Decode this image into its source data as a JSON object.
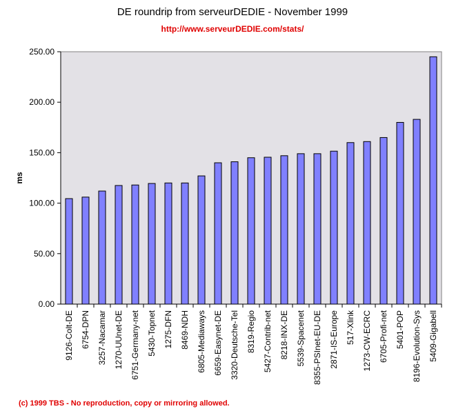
{
  "chart_data": {
    "type": "bar",
    "title": "DE roundrip from serveurDEDIE - November 1999",
    "subtitle": "http://www.serveurDEDIE.com/stats/",
    "footer": "(c) 1999 TBS - No reproduction, copy or mirroring allowed.",
    "xlabel": "",
    "ylabel": "ms",
    "ylim": [
      0,
      250
    ],
    "yticks": [
      "0.00",
      "50.00",
      "100.00",
      "150.00",
      "200.00",
      "250.00"
    ],
    "categories": [
      "9126-Colt-DE",
      "6754-DPN",
      "3257-Nacamar",
      "1270-UUnet-DE",
      "6751-Germany-net",
      "5430-Topnet",
      "1275-DFN",
      "8469-NDH",
      "6805-Mediaways",
      "6659-Easynet-DE",
      "3320-Deutsche-Tel",
      "8319-Regio",
      "5427-Contrib-net",
      "8218-INX-DE",
      "5539-Spacenet",
      "8355-PSInet-EU-DE",
      "2871-IS-Europe",
      "517-Xlink",
      "1273-CW-ECRC",
      "6705-Profi-net",
      "5401-POP",
      "8196-Evolution-Sys",
      "5409-Gigabell"
    ],
    "values": [
      104.5,
      106,
      112,
      117.5,
      118,
      119.5,
      120,
      120,
      127,
      140,
      141,
      145,
      145.5,
      147,
      149,
      149,
      151.5,
      160,
      161,
      165,
      180,
      183,
      245
    ],
    "grid": false,
    "bar_color": "#8080ff",
    "plot_bg": "#e3e1e6"
  }
}
